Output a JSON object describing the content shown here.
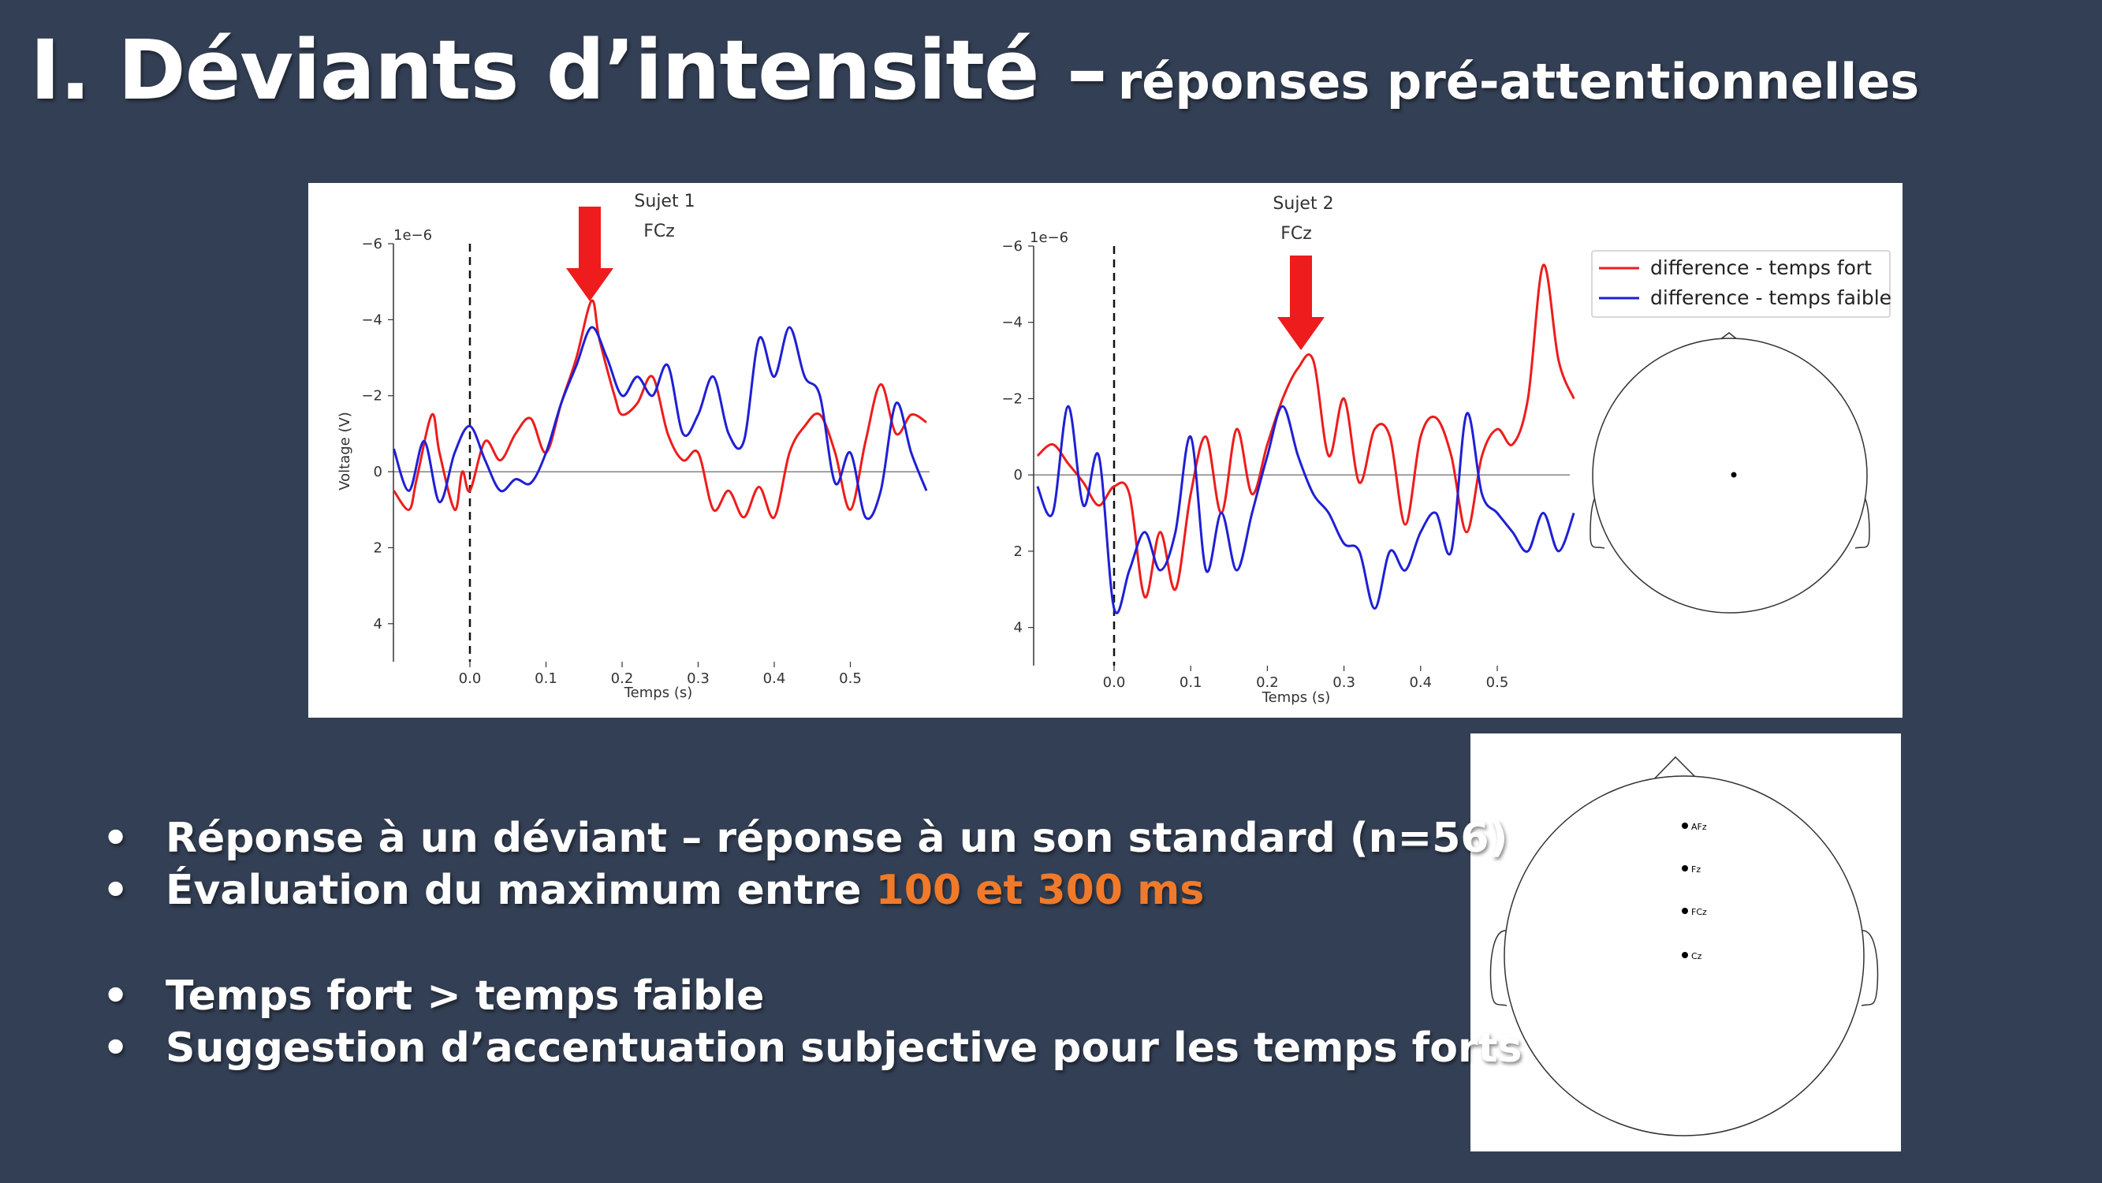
{
  "slide": {
    "title_main": "I. Déviants d’intensité –",
    "title_sub": "réponses pré-attentionnelles"
  },
  "colors": {
    "background": "#333f54",
    "highlight": "#f07a2a",
    "red_series": "#ee1c1c",
    "blue_series": "#1f1fd6"
  },
  "bullets": [
    {
      "text": "Réponse à un déviant – réponse à un son standard (n=56)"
    },
    {
      "prefix": "Évaluation du maximum entre ",
      "highlight": "100 et 300 ms"
    },
    {
      "text": "Temps fort > temps faible"
    },
    {
      "text": "Suggestion d’accentuation subjective pour les temps forts"
    }
  ],
  "bullet_symbol": "•",
  "scale_label": "1e−6",
  "chart_data": [
    {
      "type": "line",
      "title": "Sujet 1",
      "subtitle": "FCz",
      "xlabel": "Temps (s)",
      "ylabel": "Voltage (V)",
      "xlim": [
        -0.1,
        0.6
      ],
      "ylim": [
        -6,
        5
      ],
      "y_inverted": true,
      "xticks": [
        "0.0",
        "0.1",
        "0.2",
        "0.3",
        "0.4",
        "0.5"
      ],
      "yticks": [
        "−6",
        "−4",
        "−2",
        "0",
        "2",
        "4"
      ],
      "series": [
        {
          "color": "red",
          "x": [
            -0.1,
            -0.08,
            -0.07,
            -0.05,
            -0.04,
            -0.02,
            -0.01,
            0.0,
            0.02,
            0.04,
            0.06,
            0.08,
            0.1,
            0.12,
            0.14,
            0.16,
            0.17,
            0.19,
            0.2,
            0.22,
            0.24,
            0.26,
            0.28,
            0.3,
            0.32,
            0.34,
            0.36,
            0.38,
            0.4,
            0.42,
            0.44,
            0.46,
            0.48,
            0.5,
            0.52,
            0.54,
            0.56,
            0.58,
            0.6
          ],
          "y": [
            0.5,
            1.0,
            0.2,
            -1.5,
            -0.5,
            1.0,
            0.0,
            0.5,
            -0.8,
            -0.3,
            -1.0,
            -1.4,
            -0.5,
            -1.8,
            -3.0,
            -4.5,
            -3.5,
            -2.0,
            -1.5,
            -1.8,
            -2.5,
            -1.0,
            -0.3,
            -0.5,
            1.0,
            0.5,
            1.2,
            0.4,
            1.2,
            -0.5,
            -1.2,
            -1.5,
            -0.5,
            1.0,
            -0.8,
            -2.3,
            -1.0,
            -1.5,
            -1.3
          ]
        },
        {
          "color": "blue",
          "x": [
            -0.1,
            -0.08,
            -0.06,
            -0.04,
            -0.02,
            0.0,
            0.02,
            0.04,
            0.06,
            0.08,
            0.1,
            0.12,
            0.14,
            0.16,
            0.18,
            0.2,
            0.22,
            0.24,
            0.26,
            0.28,
            0.3,
            0.32,
            0.34,
            0.36,
            0.38,
            0.4,
            0.42,
            0.44,
            0.46,
            0.48,
            0.5,
            0.52,
            0.54,
            0.56,
            0.58,
            0.6
          ],
          "y": [
            -0.6,
            0.5,
            -0.8,
            0.8,
            -0.5,
            -1.2,
            -0.3,
            0.5,
            0.2,
            0.3,
            -0.5,
            -1.8,
            -2.8,
            -3.8,
            -3.0,
            -2.0,
            -2.5,
            -2.0,
            -2.8,
            -1.0,
            -1.5,
            -2.5,
            -1.0,
            -0.8,
            -3.5,
            -2.5,
            -3.8,
            -2.5,
            -2.0,
            0.3,
            -0.5,
            1.2,
            0.5,
            -1.8,
            -0.5,
            0.5
          ]
        }
      ]
    },
    {
      "type": "line",
      "title": "Sujet 2",
      "subtitle": "FCz",
      "xlabel": "Temps (s)",
      "xlim": [
        -0.1,
        0.6
      ],
      "ylim": [
        -6,
        5
      ],
      "y_inverted": true,
      "xticks": [
        "0.0",
        "0.1",
        "0.2",
        "0.3",
        "0.4",
        "0.5"
      ],
      "yticks": [
        "−6",
        "−4",
        "−2",
        "0",
        "2",
        "4"
      ],
      "legend": {
        "location": "top-right",
        "entries": [
          "difference - temps fort",
          "difference - temps faible"
        ]
      },
      "series": [
        {
          "name": "difference - temps fort",
          "color": "red",
          "x": [
            -0.1,
            -0.08,
            -0.06,
            -0.04,
            -0.02,
            0.0,
            0.02,
            0.04,
            0.06,
            0.08,
            0.1,
            0.12,
            0.14,
            0.16,
            0.18,
            0.2,
            0.22,
            0.24,
            0.26,
            0.28,
            0.3,
            0.32,
            0.34,
            0.36,
            0.38,
            0.4,
            0.42,
            0.44,
            0.46,
            0.48,
            0.5,
            0.52,
            0.54,
            0.56,
            0.58,
            0.6
          ],
          "y": [
            -0.5,
            -0.8,
            -0.3,
            0.2,
            0.8,
            0.3,
            0.5,
            3.2,
            1.5,
            3.0,
            0.5,
            -1.0,
            1.0,
            -1.2,
            0.5,
            -0.8,
            -2.0,
            -2.8,
            -3.0,
            -0.5,
            -2.0,
            0.2,
            -1.2,
            -1.0,
            1.3,
            -1.0,
            -1.5,
            -0.5,
            1.5,
            -0.5,
            -1.2,
            -0.8,
            -2.0,
            -5.5,
            -3.0,
            -2.0
          ]
        },
        {
          "name": "difference - temps faible",
          "color": "blue",
          "x": [
            -0.1,
            -0.08,
            -0.06,
            -0.04,
            -0.02,
            0.0,
            0.02,
            0.04,
            0.06,
            0.08,
            0.1,
            0.12,
            0.14,
            0.16,
            0.18,
            0.2,
            0.22,
            0.24,
            0.26,
            0.28,
            0.3,
            0.32,
            0.34,
            0.36,
            0.38,
            0.4,
            0.42,
            0.44,
            0.46,
            0.48,
            0.5,
            0.52,
            0.54,
            0.56,
            0.58,
            0.6
          ],
          "y": [
            0.3,
            1.0,
            -1.8,
            0.8,
            -0.5,
            3.5,
            2.5,
            1.5,
            2.5,
            1.5,
            -1.0,
            2.5,
            1.0,
            2.5,
            1.0,
            -0.5,
            -1.8,
            -0.5,
            0.5,
            1.0,
            1.8,
            2.0,
            3.5,
            2.0,
            2.5,
            1.5,
            1.0,
            2.0,
            -1.6,
            0.5,
            1.0,
            1.5,
            2.0,
            1.0,
            2.0,
            1.0
          ]
        }
      ]
    }
  ],
  "sensor_maps": [
    {
      "labels": []
    },
    {
      "labels": [
        "AFz",
        "Fz",
        "FCz",
        "Cz"
      ]
    }
  ]
}
